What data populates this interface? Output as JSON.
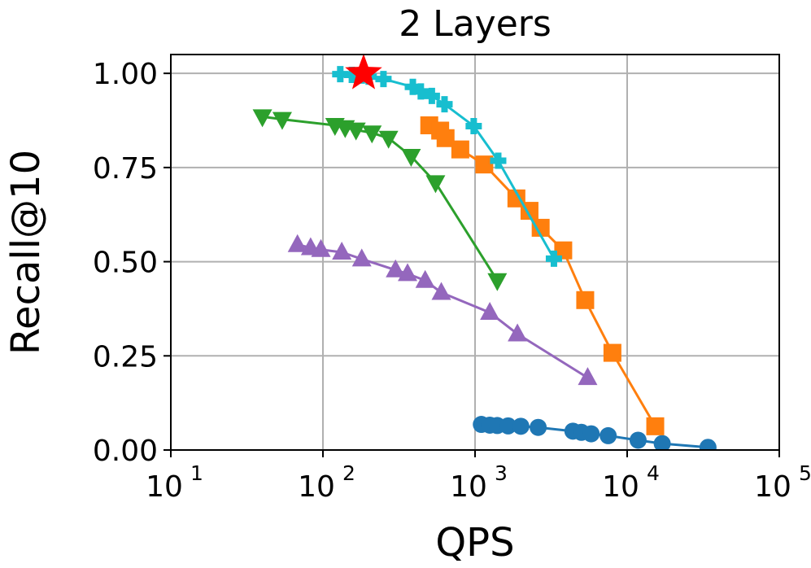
{
  "chart_data": {
    "type": "line",
    "title": "2 Layers",
    "xlabel": "QPS",
    "ylabel": "Recall@10",
    "xscale": "log",
    "xlim": [
      10,
      100000
    ],
    "ylim": [
      0,
      1.05
    ],
    "grid": true,
    "x_ticks": [
      {
        "value": 10,
        "base": "10",
        "exp": "1"
      },
      {
        "value": 100,
        "base": "10",
        "exp": "2"
      },
      {
        "value": 1000,
        "base": "10",
        "exp": "3"
      },
      {
        "value": 10000,
        "base": "10",
        "exp": "4"
      },
      {
        "value": 100000,
        "base": "10",
        "exp": "5"
      }
    ],
    "y_ticks": [
      {
        "value": 0.0,
        "label": "0.00"
      },
      {
        "value": 0.25,
        "label": "0.25"
      },
      {
        "value": 0.5,
        "label": "0.50"
      },
      {
        "value": 0.75,
        "label": "0.75"
      },
      {
        "value": 1.0,
        "label": "1.00"
      }
    ],
    "series": [
      {
        "color": "#1f77b4",
        "marker": "circle",
        "points": [
          [
            1100,
            0.068
          ],
          [
            1250,
            0.066
          ],
          [
            1400,
            0.065
          ],
          [
            1650,
            0.064
          ],
          [
            2000,
            0.063
          ],
          [
            2600,
            0.06
          ],
          [
            4400,
            0.05
          ],
          [
            5000,
            0.047
          ],
          [
            5800,
            0.043
          ],
          [
            7500,
            0.038
          ],
          [
            11800,
            0.026
          ],
          [
            17000,
            0.017
          ],
          [
            34000,
            0.007
          ]
        ]
      },
      {
        "color": "#ff7f0e",
        "marker": "square",
        "points": [
          [
            500,
            0.862
          ],
          [
            590,
            0.848
          ],
          [
            640,
            0.828
          ],
          [
            800,
            0.798
          ],
          [
            1150,
            0.758
          ],
          [
            1870,
            0.668
          ],
          [
            2280,
            0.635
          ],
          [
            2700,
            0.59
          ],
          [
            3800,
            0.53
          ],
          [
            5300,
            0.398
          ],
          [
            8000,
            0.258
          ],
          [
            15300,
            0.063
          ]
        ]
      },
      {
        "color": "#2ca02c",
        "marker": "triangle-down",
        "points": [
          [
            40,
            0.885
          ],
          [
            54,
            0.878
          ],
          [
            120,
            0.862
          ],
          [
            140,
            0.856
          ],
          [
            165,
            0.85
          ],
          [
            210,
            0.842
          ],
          [
            270,
            0.828
          ],
          [
            380,
            0.78
          ],
          [
            550,
            0.71
          ],
          [
            1400,
            0.45
          ]
        ]
      },
      {
        "color": "#9467bd",
        "marker": "triangle-up",
        "points": [
          [
            68,
            0.545
          ],
          [
            83,
            0.537
          ],
          [
            97,
            0.532
          ],
          [
            133,
            0.525
          ],
          [
            180,
            0.507
          ],
          [
            300,
            0.478
          ],
          [
            360,
            0.468
          ],
          [
            470,
            0.45
          ],
          [
            600,
            0.418
          ],
          [
            1250,
            0.365
          ],
          [
            1900,
            0.308
          ],
          [
            5500,
            0.192
          ]
        ]
      },
      {
        "color": "#17becf",
        "marker": "plus",
        "points": [
          [
            130,
            0.998
          ],
          [
            155,
            0.996
          ],
          [
            180,
            0.994
          ],
          [
            200,
            0.991
          ],
          [
            250,
            0.985
          ],
          [
            390,
            0.964
          ],
          [
            440,
            0.952
          ],
          [
            520,
            0.94
          ],
          [
            630,
            0.918
          ],
          [
            980,
            0.86
          ],
          [
            1420,
            0.768
          ],
          [
            3300,
            0.508
          ]
        ]
      },
      {
        "color": "#ff0000",
        "marker": "star",
        "points": [
          [
            185,
            1.0
          ]
        ]
      }
    ]
  }
}
